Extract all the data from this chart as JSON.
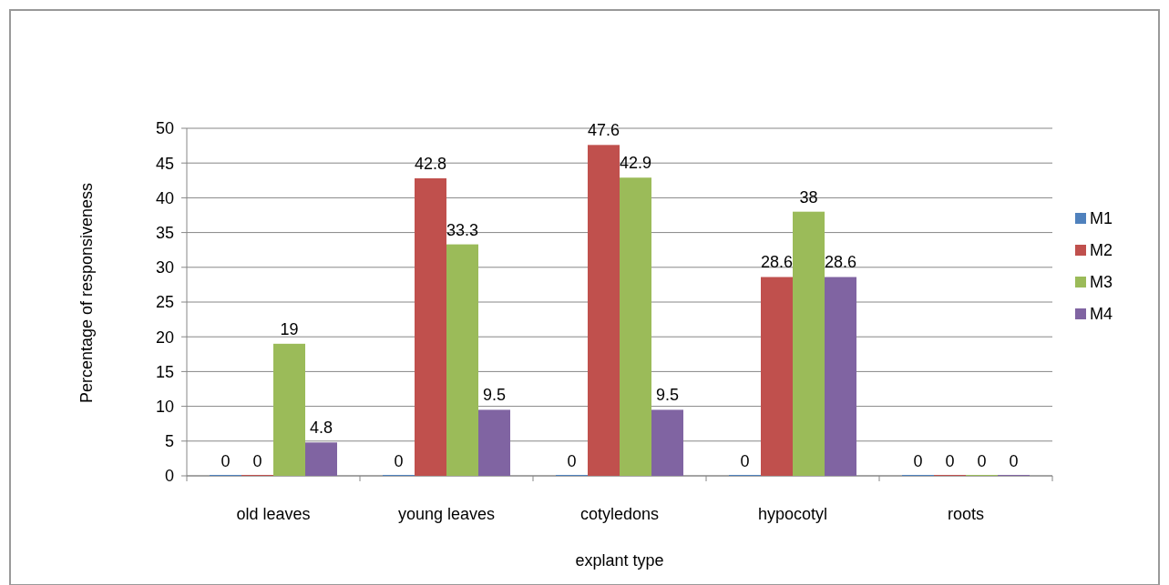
{
  "chart_data": {
    "type": "bar",
    "xlabel": "explant type",
    "ylabel": "Percentage of responsiveness",
    "categories": [
      "old leaves",
      "young leaves",
      "cotyledons",
      "hypocotyl",
      "roots"
    ],
    "series": [
      {
        "name": "M1",
        "color": "#4f81bd",
        "values": [
          0,
          0,
          0,
          0,
          0
        ]
      },
      {
        "name": "M2",
        "color": "#c0504d",
        "values": [
          0,
          42.8,
          47.6,
          28.6,
          0
        ]
      },
      {
        "name": "M3",
        "color": "#9bbb59",
        "values": [
          19,
          33.3,
          42.9,
          38,
          0
        ]
      },
      {
        "name": "M4",
        "color": "#8064a2",
        "values": [
          4.8,
          9.5,
          9.5,
          28.6,
          0
        ]
      }
    ],
    "ylim": [
      0,
      50
    ],
    "yticks": [
      0,
      5,
      10,
      15,
      20,
      25,
      30,
      35,
      40,
      45,
      50
    ],
    "grid": "y",
    "legend": "right",
    "data_labels": true
  }
}
